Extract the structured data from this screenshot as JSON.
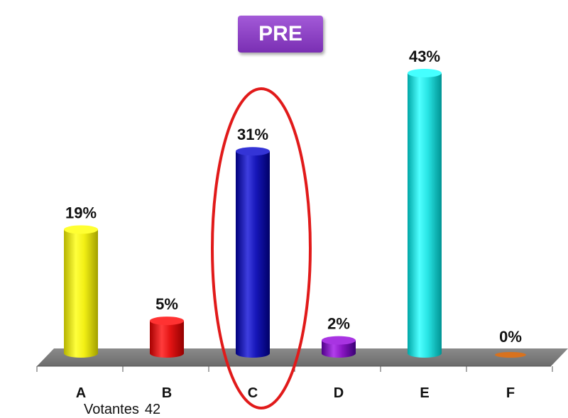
{
  "badge": {
    "label": "PRE",
    "color": "#8a3cc4"
  },
  "footer": {
    "voters_label": "Votantes",
    "voters_count": "42"
  },
  "highlight": {
    "category": "C",
    "shape": "ellipse",
    "color": "#e11a1a"
  },
  "chart_data": {
    "type": "bar",
    "style": "3d-cylinder",
    "title": "PRE",
    "categories": [
      "A",
      "B",
      "C",
      "D",
      "E",
      "F"
    ],
    "values": [
      19,
      5,
      31,
      2,
      43,
      0
    ],
    "value_labels": [
      "19%",
      "5%",
      "31%",
      "2%",
      "43%",
      "0%"
    ],
    "colors": [
      "#f2ef14",
      "#e31414",
      "#1616b8",
      "#8a16c4",
      "#27e3e3",
      "#d8721e"
    ],
    "ylim": [
      0,
      43
    ],
    "unit": "%",
    "grid": false,
    "legend": "none"
  }
}
